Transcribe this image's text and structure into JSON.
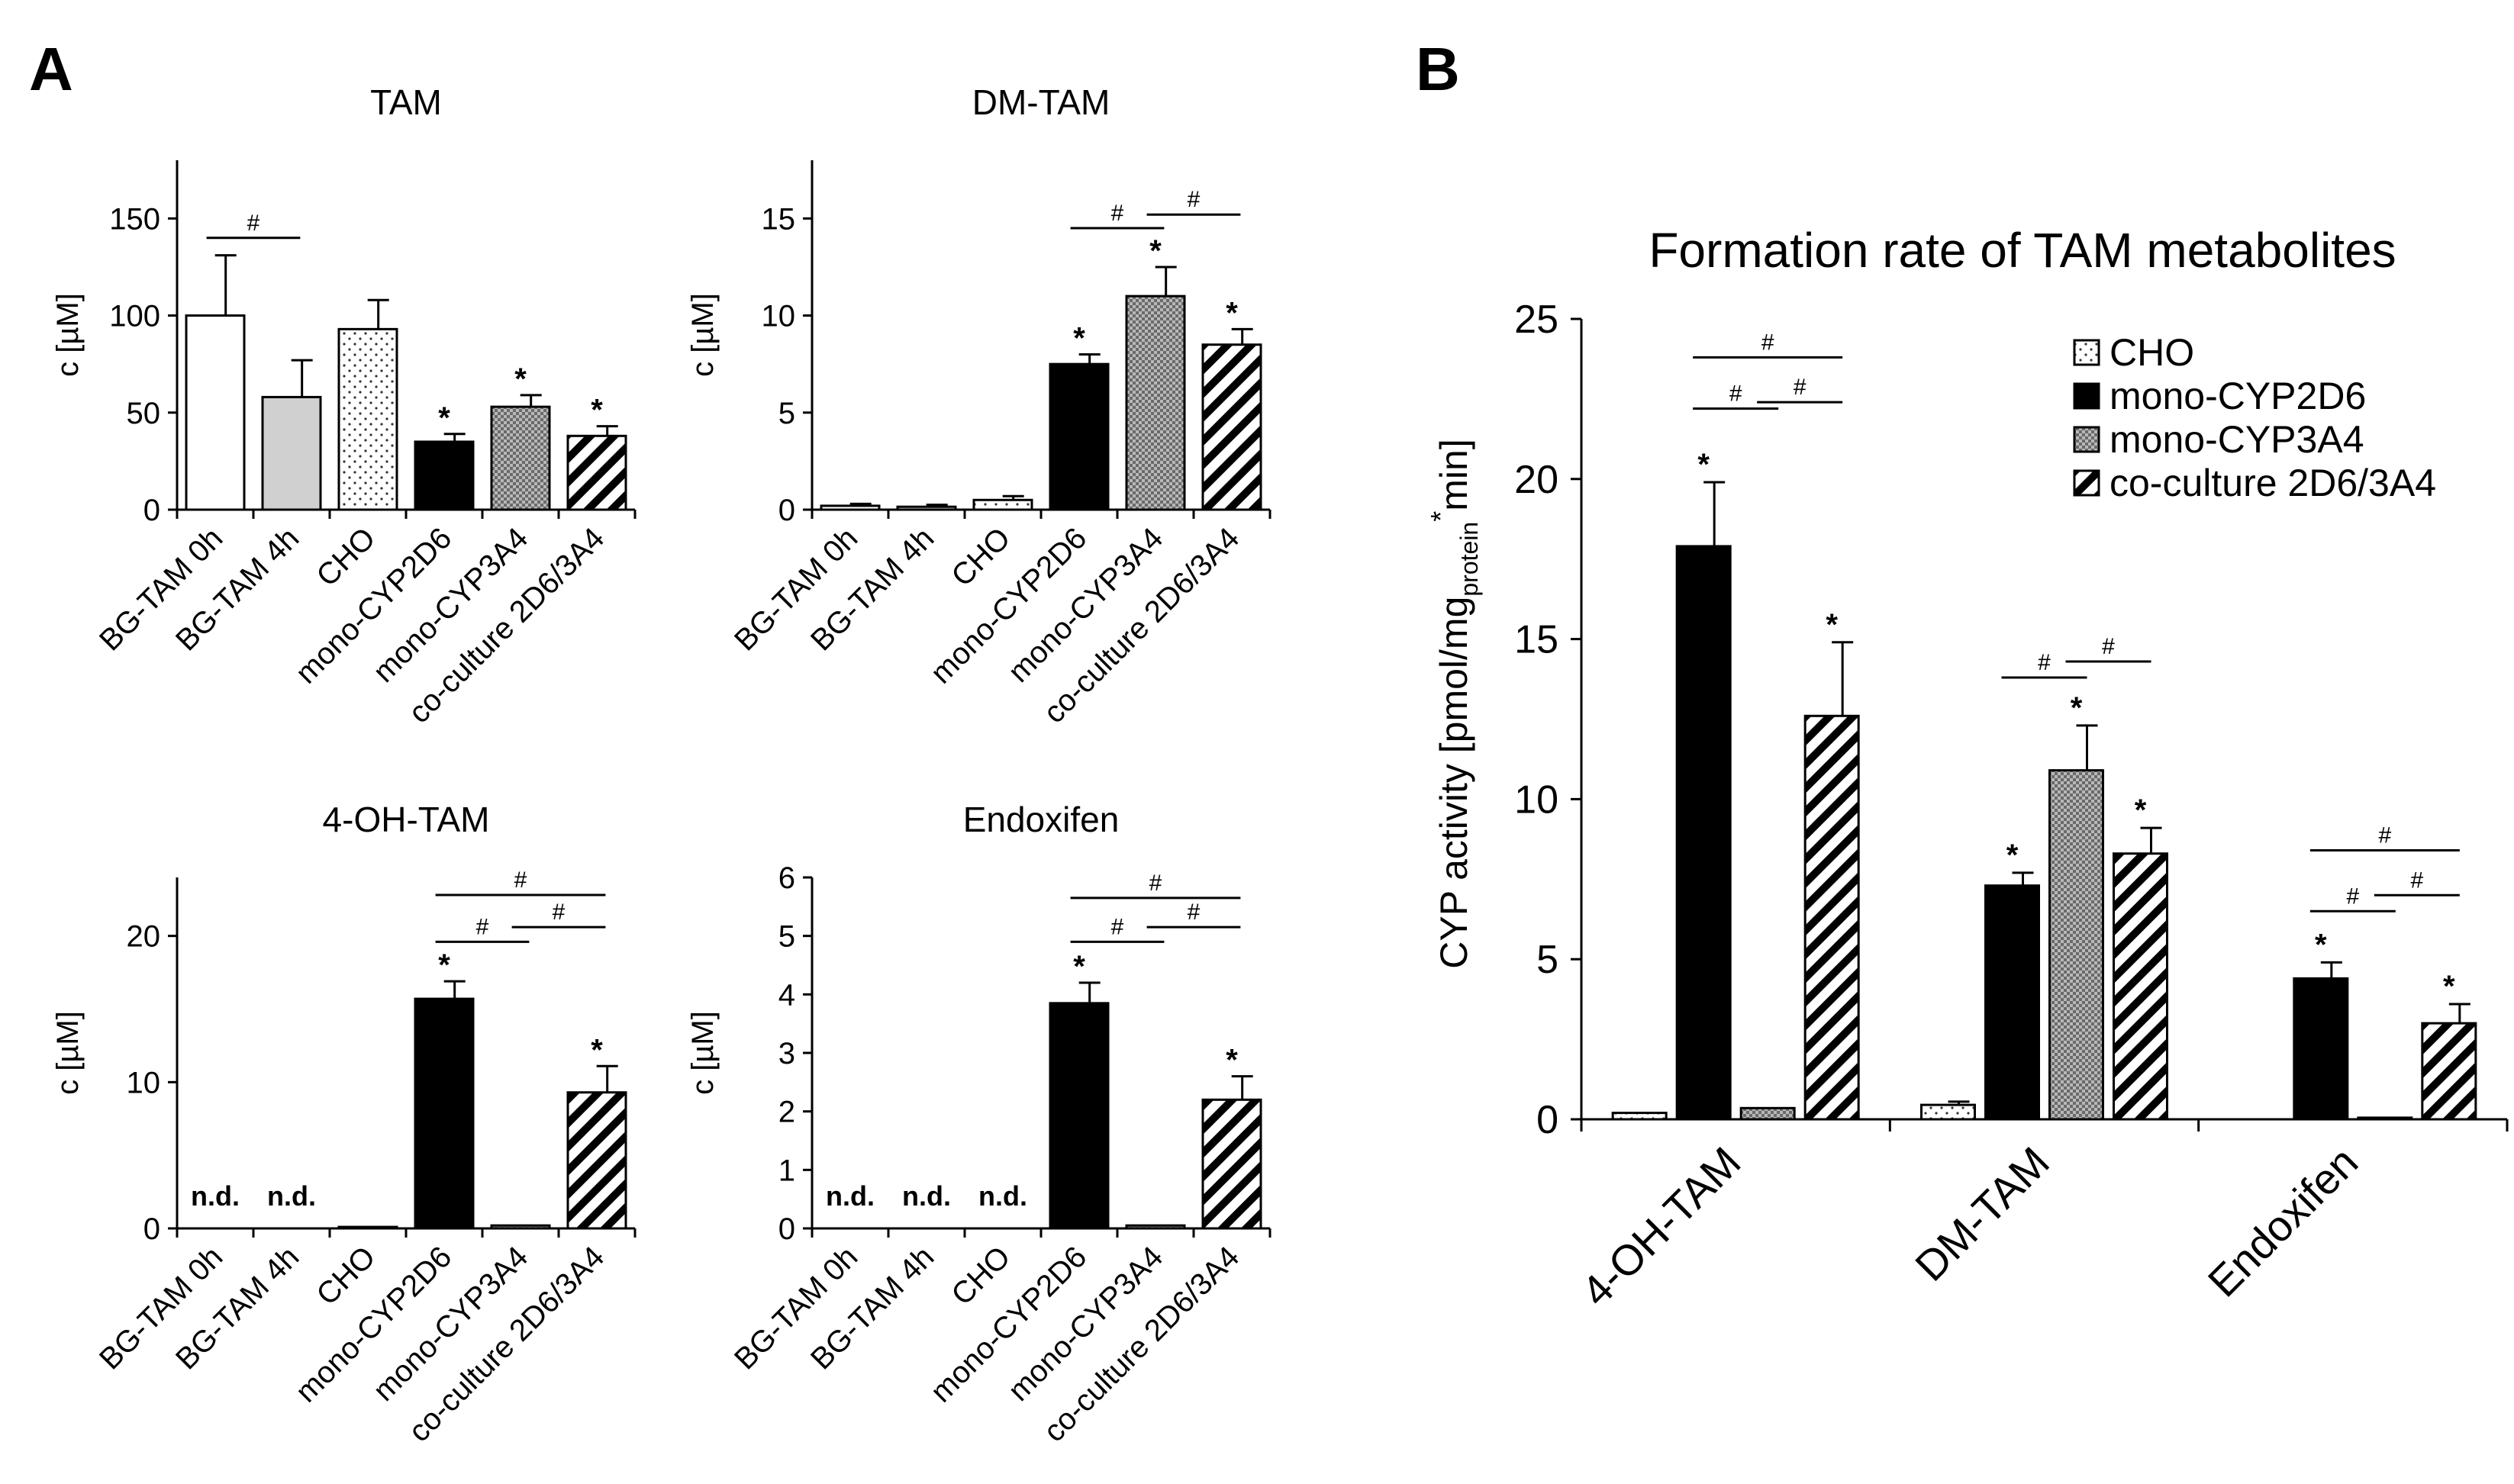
{
  "panel_labels": {
    "a": "A",
    "b": "B"
  },
  "common": {
    "ylabel_small": "c [µM]",
    "categories": [
      "BG-TAM 0h",
      "BG-TAM 4h",
      "CHO",
      "mono-CYP2D6",
      "mono-CYP3A4",
      "co-culture 2D6/3A4"
    ],
    "fills": [
      "white",
      "gray",
      "dots",
      "black",
      "checker",
      "hatch"
    ]
  },
  "chart_data": [
    {
      "id": "tam",
      "type": "bar",
      "title": "TAM",
      "ylabel": "c [µM]",
      "ylim": [
        0,
        180
      ],
      "yticks": [
        0,
        50,
        100,
        150
      ],
      "categories": [
        "BG-TAM 0h",
        "BG-TAM 4h",
        "CHO",
        "mono-CYP2D6",
        "mono-CYP3A4",
        "co-culture 2D6/3A4"
      ],
      "values": [
        100,
        58,
        93,
        35,
        53,
        38
      ],
      "errors": [
        31,
        19,
        15,
        4,
        6,
        5
      ],
      "labels": [
        "",
        "",
        "",
        "*",
        "*",
        "*"
      ],
      "brackets": [
        {
          "from": 0,
          "to": 1,
          "y": 140,
          "text": "#"
        }
      ]
    },
    {
      "id": "dmtam",
      "type": "bar",
      "title": "DM-TAM",
      "ylabel": "c [µM]",
      "ylim": [
        0,
        18
      ],
      "yticks": [
        0,
        5,
        10,
        15
      ],
      "categories": [
        "BG-TAM 0h",
        "BG-TAM 4h",
        "CHO",
        "mono-CYP2D6",
        "mono-CYP3A4",
        "co-culture 2D6/3A4"
      ],
      "values": [
        0.2,
        0.15,
        0.5,
        7.5,
        11.0,
        8.5
      ],
      "errors": [
        0.1,
        0.1,
        0.2,
        0.5,
        1.5,
        0.8
      ],
      "labels": [
        "",
        "",
        "",
        "*",
        "*",
        "*"
      ],
      "brackets": [
        {
          "from": 3,
          "to": 4,
          "y": 14.5,
          "text": "#"
        },
        {
          "from": 4,
          "to": 5,
          "y": 15.2,
          "text": "#"
        }
      ]
    },
    {
      "id": "ohtam",
      "type": "bar",
      "title": "4-OH-TAM",
      "ylabel": "c [µM]",
      "ylim": [
        0,
        24
      ],
      "yticks": [
        0,
        10,
        20
      ],
      "categories": [
        "BG-TAM 0h",
        "BG-TAM 4h",
        "CHO",
        "mono-CYP2D6",
        "mono-CYP3A4",
        "co-culture 2D6/3A4"
      ],
      "values": [
        0,
        0,
        0.1,
        15.7,
        0.2,
        9.3
      ],
      "errors": [
        0,
        0,
        0,
        1.2,
        0,
        1.8
      ],
      "labels": [
        "n.d.",
        "n.d.",
        "",
        "*",
        "",
        "*"
      ],
      "brackets": [
        {
          "from": 3,
          "to": 4,
          "y": 19.6,
          "text": "#"
        },
        {
          "from": 4,
          "to": 5,
          "y": 20.6,
          "text": "#"
        },
        {
          "from": 3,
          "to": 5,
          "y": 22.8,
          "text": "#"
        }
      ]
    },
    {
      "id": "endox",
      "type": "bar",
      "title": "Endoxifen",
      "ylabel": "c [µM]",
      "ylim": [
        0,
        6
      ],
      "yticks": [
        0,
        1,
        2,
        3,
        4,
        5,
        6
      ],
      "categories": [
        "BG-TAM 0h",
        "BG-TAM 4h",
        "CHO",
        "mono-CYP2D6",
        "mono-CYP3A4",
        "co-culture 2D6/3A4"
      ],
      "values": [
        0,
        0,
        0,
        3.85,
        0.05,
        2.2
      ],
      "errors": [
        0,
        0,
        0,
        0.35,
        0,
        0.4
      ],
      "labels": [
        "n.d.",
        "n.d.",
        "n.d.",
        "*",
        "",
        "*"
      ],
      "brackets": [
        {
          "from": 3,
          "to": 4,
          "y": 4.9,
          "text": "#"
        },
        {
          "from": 4,
          "to": 5,
          "y": 5.15,
          "text": "#"
        },
        {
          "from": 3,
          "to": 5,
          "y": 5.65,
          "text": "#"
        }
      ]
    },
    {
      "id": "rate",
      "type": "bar",
      "title": "Formation rate of TAM metabolites",
      "ylabel": "CYP activity [pmol/mg",
      "ylabel_sub": "protein",
      "ylabel_sup": "*",
      "ylabel_end": "min]",
      "ylim": [
        0,
        25
      ],
      "yticks": [
        0,
        5,
        10,
        15,
        20,
        25
      ],
      "categories": [
        "4-OH-TAM",
        "DM-TAM",
        "Endoxifen"
      ],
      "series": [
        {
          "name": "CHO",
          "fill": "dots",
          "values": [
            0.2,
            0.45,
            0
          ],
          "errors": [
            0,
            0.1,
            0
          ],
          "labels": [
            "",
            "",
            ""
          ]
        },
        {
          "name": "mono-CYP2D6",
          "fill": "black",
          "values": [
            17.9,
            7.3,
            4.4
          ],
          "errors": [
            2.0,
            0.4,
            0.5
          ],
          "labels": [
            "*",
            "*",
            "*"
          ]
        },
        {
          "name": "mono-CYP3A4",
          "fill": "checker",
          "values": [
            0.35,
            10.9,
            0.05
          ],
          "errors": [
            0,
            1.4,
            0
          ],
          "labels": [
            "",
            "*",
            ""
          ]
        },
        {
          "name": "co-culture 2D6/3A4",
          "fill": "hatch",
          "values": [
            12.6,
            8.3,
            3.0
          ],
          "errors": [
            2.3,
            0.8,
            0.6
          ],
          "labels": [
            "*",
            "*",
            "*"
          ]
        }
      ],
      "brackets": [
        {
          "group": 0,
          "from": 1,
          "to": 2,
          "y": 22.2,
          "text": "#"
        },
        {
          "group": 0,
          "from": 2,
          "to": 3,
          "y": 22.4,
          "text": "#"
        },
        {
          "group": 0,
          "from": 1,
          "to": 3,
          "y": 23.8,
          "text": "#"
        },
        {
          "group": 1,
          "from": 1,
          "to": 2,
          "y": 13.8,
          "text": "#"
        },
        {
          "group": 1,
          "from": 2,
          "to": 3,
          "y": 14.3,
          "text": "#"
        },
        {
          "group": 2,
          "from": 1,
          "to": 2,
          "y": 6.5,
          "text": "#"
        },
        {
          "group": 2,
          "from": 2,
          "to": 3,
          "y": 7.0,
          "text": "#"
        },
        {
          "group": 2,
          "from": 1,
          "to": 3,
          "y": 8.4,
          "text": "#"
        }
      ]
    }
  ]
}
